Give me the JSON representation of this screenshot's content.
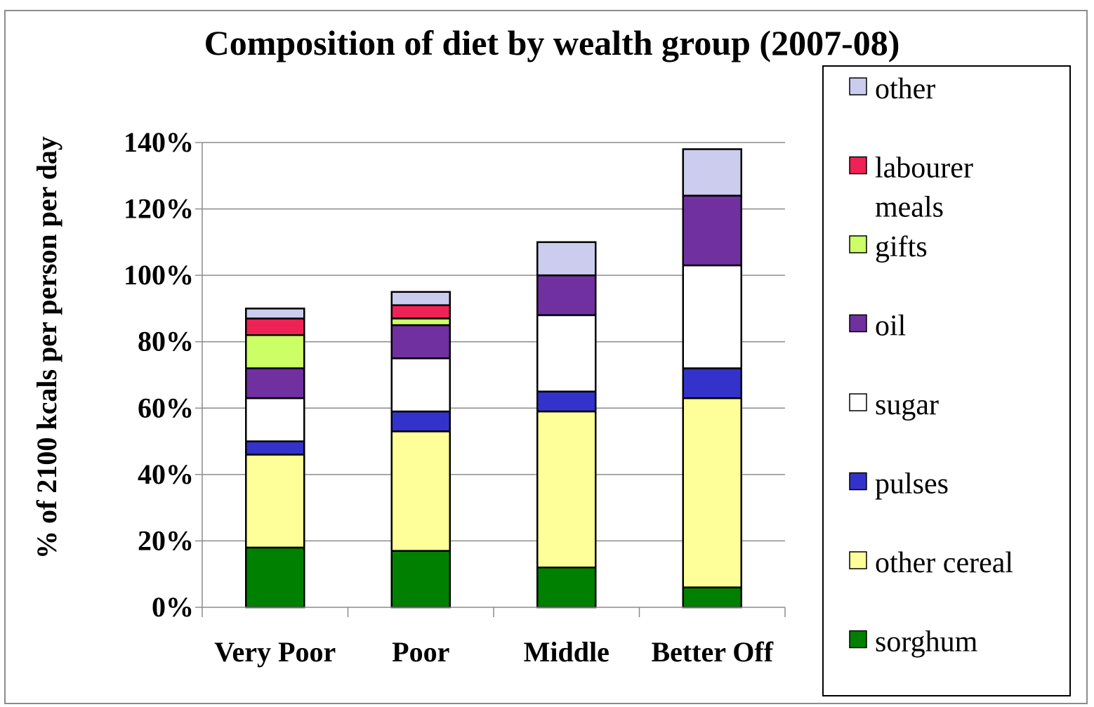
{
  "chart_data": {
    "type": "bar",
    "stacked": true,
    "title": "Composition of diet by wealth group (2007-08)",
    "xlabel": "",
    "ylabel": "% of 2100 kcals per person per day",
    "ylim": [
      0,
      140
    ],
    "yticks": [
      "0%",
      "20%",
      "40%",
      "60%",
      "80%",
      "100%",
      "120%",
      "140%"
    ],
    "grid": true,
    "legend_position": "right",
    "categories": [
      "Very Poor",
      "Poor",
      "Middle",
      "Better Off"
    ],
    "series": [
      {
        "name": "sorghum",
        "color": "#008000",
        "values": [
          18,
          17,
          12,
          6
        ]
      },
      {
        "name": "other cereal",
        "color": "#ffff99",
        "values": [
          28,
          36,
          47,
          57
        ]
      },
      {
        "name": "pulses",
        "color": "#3333cc",
        "values": [
          4,
          6,
          6,
          9
        ]
      },
      {
        "name": "sugar",
        "color": "#ffffff",
        "values": [
          13,
          16,
          23,
          31
        ]
      },
      {
        "name": "oil",
        "color": "#7030a0",
        "values": [
          9,
          10,
          12,
          21
        ]
      },
      {
        "name": "gifts",
        "color": "#ccff66",
        "values": [
          10,
          2,
          0,
          0
        ]
      },
      {
        "name": "labourer meals",
        "color": "#ee2255",
        "values": [
          5,
          4,
          0,
          0
        ]
      },
      {
        "name": "other",
        "color": "#ccccee",
        "values": [
          3,
          4,
          10,
          14
        ]
      }
    ],
    "legend": [
      {
        "line1": "other",
        "line2": ""
      },
      {
        "line1": "labourer",
        "line2": "meals"
      },
      {
        "line1": "gifts",
        "line2": ""
      },
      {
        "line1": "oil",
        "line2": ""
      },
      {
        "line1": "sugar",
        "line2": ""
      },
      {
        "line1": "pulses",
        "line2": ""
      },
      {
        "line1": "other cereal",
        "line2": ""
      },
      {
        "line1": "sorghum",
        "line2": ""
      }
    ]
  }
}
